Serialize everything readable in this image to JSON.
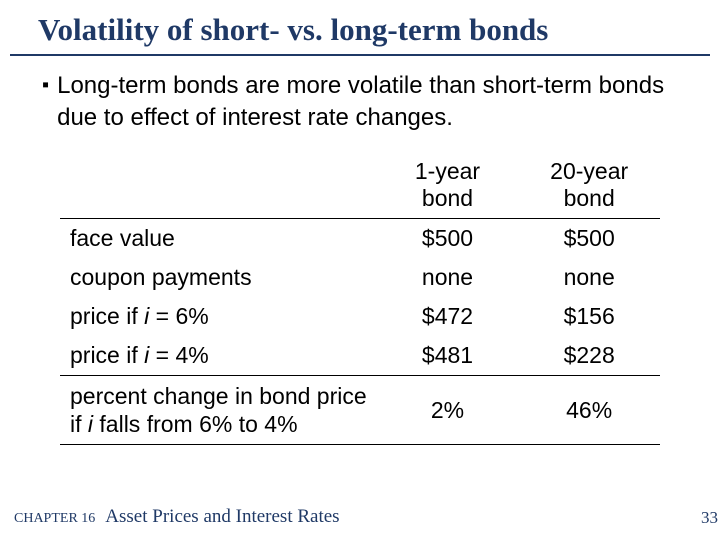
{
  "title": "Volatility of short- vs. long-term bonds",
  "bullet": {
    "marker": "▪",
    "text": "Long-term bonds are more volatile than short-term bonds due to effect of interest rate changes."
  },
  "table": {
    "header": {
      "col1": "1-year bond",
      "col2": "20-year bond"
    },
    "rows": [
      {
        "label": "face value",
        "c1": "$500",
        "c2": "$500"
      },
      {
        "label": "coupon payments",
        "c1": "none",
        "c2": "none"
      },
      {
        "label_pre": "price if ",
        "label_i": "i",
        "label_post": " = 6%",
        "c1": "$472",
        "c2": "$156"
      },
      {
        "label_pre": "price if ",
        "label_i": "i ",
        "label_post": " = 4%",
        "c1": "$481",
        "c2": "$228"
      }
    ],
    "bigrow": {
      "line1_pre": "percent change in bond price",
      "line2_pre": "if ",
      "line2_i": "i",
      "line2_post": " falls from 6% to 4%",
      "c1": "2%",
      "c2": "46%"
    }
  },
  "footer": {
    "chapter_label": "CHAPTER 16",
    "chapter_title": "Asset Prices and Interest Rates",
    "page": "33"
  },
  "colors": {
    "title": "#1f3966",
    "rule": "#1f3966",
    "text": "#000000",
    "background": "#ffffff"
  },
  "fontsizes": {
    "title_pt": 31,
    "body_pt": 24,
    "table_pt": 23,
    "footer_small_pt": 14,
    "footer_large_pt": 19,
    "pagenum_pt": 17
  }
}
